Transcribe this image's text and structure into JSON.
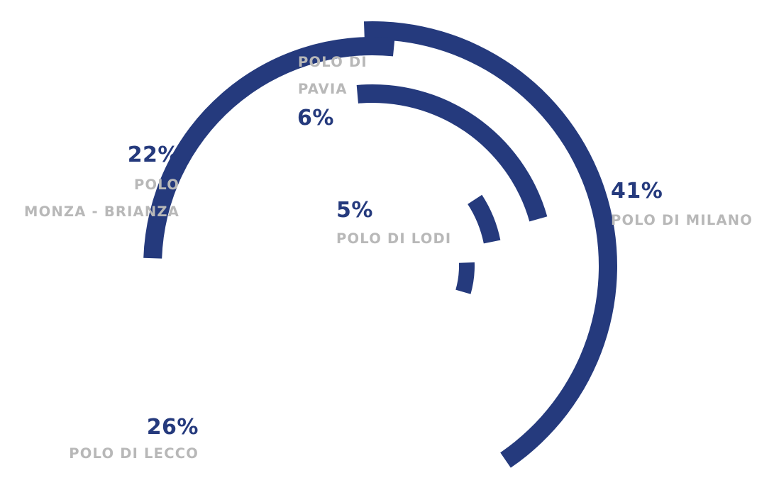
{
  "chart_data": {
    "type": "pie",
    "title": "",
    "series_color": "#253a7d",
    "label_color": "#b8b8b8",
    "slices": [
      {
        "percent_label": "41%",
        "value": 41,
        "label_lines": [
          "POLO DI MILANO"
        ]
      },
      {
        "percent_label": "26%",
        "value": 26,
        "label_lines": [
          "POLO DI LECCO"
        ]
      },
      {
        "percent_label": "22%",
        "value": 22,
        "label_lines": [
          "POLO",
          "MONZA - BRIANZA"
        ]
      },
      {
        "percent_label": "6%",
        "value": 6,
        "label_lines": [
          "POLO DI",
          "PAVIA"
        ]
      },
      {
        "percent_label": "5%",
        "value": 5,
        "label_lines": [
          "POLO DI LODI"
        ]
      }
    ]
  }
}
